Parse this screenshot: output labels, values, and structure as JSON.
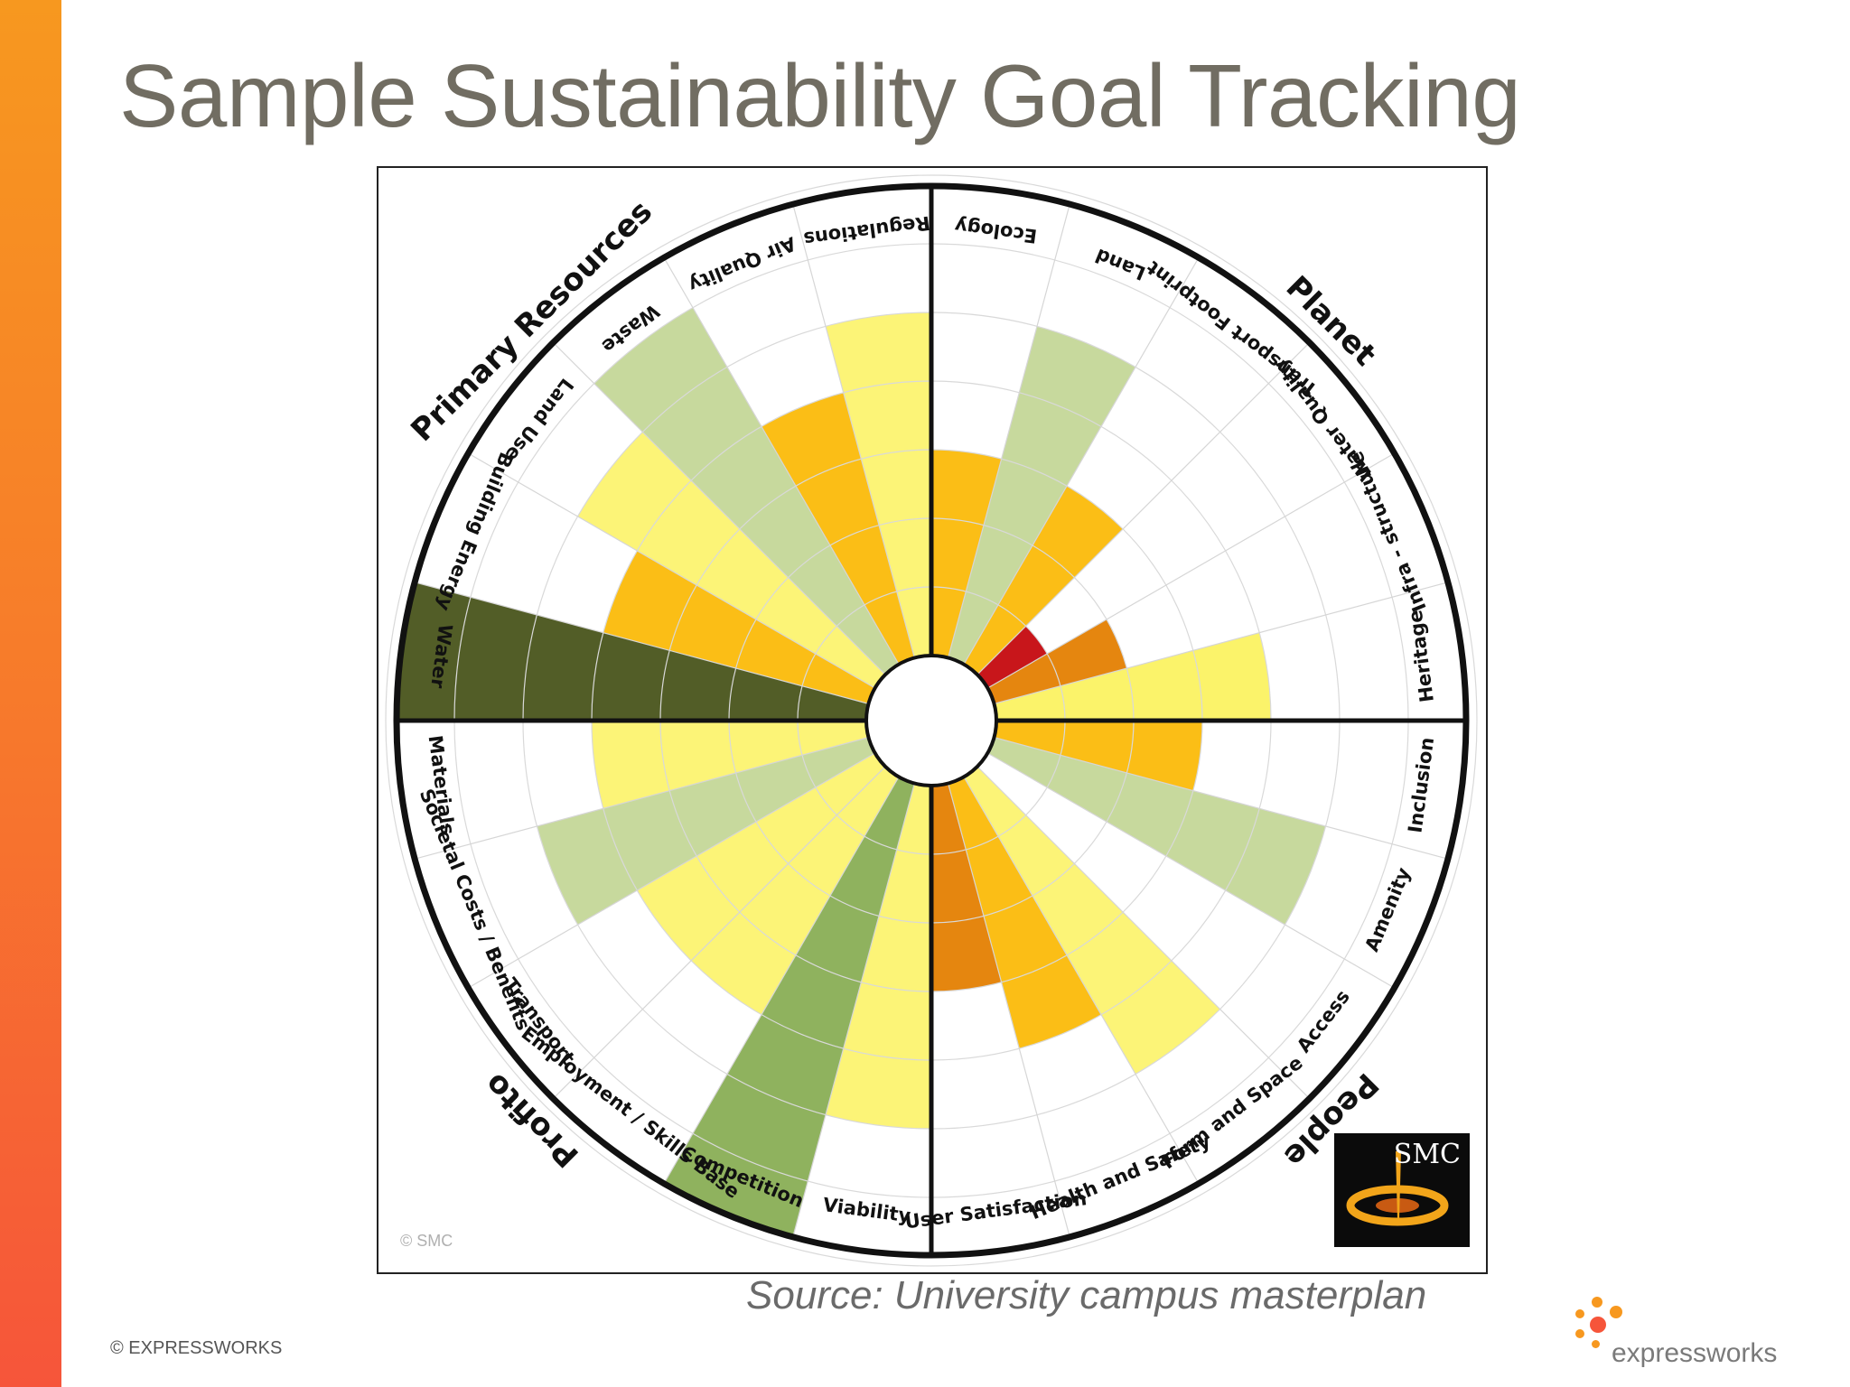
{
  "slide": {
    "title": "Sample Sustainability Goal Tracking",
    "source": "Source: University campus masterplan",
    "footer_copyright": "© EXPRESSWORKS",
    "brand_name": "expressworks",
    "chart_copyright": "© SMC",
    "chart_logo_text": "SMC"
  },
  "colors": {
    "accent_orange": "#f77a2b",
    "title_gray": "#716d62",
    "ring_stroke": "#111111"
  },
  "chart_data": {
    "type": "polar-area",
    "max_level": 7,
    "quadrants": [
      {
        "name": "Primary Resources"
      },
      {
        "name": "Planet"
      },
      {
        "name": "People"
      },
      {
        "name": "Profito"
      }
    ],
    "segments": [
      {
        "label": "Heritage",
        "value": 4,
        "color": "#fbf36a"
      },
      {
        "label": "Infra - structure",
        "value": 2,
        "color": "#e5860f"
      },
      {
        "label": "Water Quality",
        "value": 1,
        "color": "#c8161b"
      },
      {
        "label": "Transport Footprint",
        "value": 3,
        "color": "#fbbe16"
      },
      {
        "label": "Land",
        "value": 5,
        "color": "#c7d99d"
      },
      {
        "label": "Ecology",
        "value": 3,
        "color": "#fbbe16"
      },
      {
        "label": "Regulations",
        "value": 5,
        "color": "#fcf477"
      },
      {
        "label": "Air Quality",
        "value": 4,
        "color": "#fbbe16"
      },
      {
        "label": "Waste",
        "value": 6,
        "color": "#c7d99d"
      },
      {
        "label": "Land Use",
        "value": 5,
        "color": "#fcf477"
      },
      {
        "label": "Building Energy",
        "value": 4,
        "color": "#fbbe16"
      },
      {
        "label": "Water",
        "value": 8,
        "color": "#525d27"
      },
      {
        "label": "Materials",
        "value": 4,
        "color": "#fcf477"
      },
      {
        "label": "Societal Costs / Benefits",
        "value": 5,
        "color": "#c7d99d"
      },
      {
        "label": "Transport",
        "value": 4,
        "color": "#fcf477"
      },
      {
        "label": "Employment / Skills Base",
        "value": 4,
        "color": "#fcf477"
      },
      {
        "label": "Competition",
        "value": 7,
        "color": "#8fb25e"
      },
      {
        "label": "Viability",
        "value": 5,
        "color": "#fcf477"
      },
      {
        "label": "User Satisfaction",
        "value": 3,
        "color": "#e5860f"
      },
      {
        "label": "Health and Safety",
        "value": 4,
        "color": "#fbbe16"
      },
      {
        "label": "Form and Space",
        "value": 5,
        "color": "#fcf477"
      },
      {
        "label": "Access",
        "value": 0,
        "color": "#fcf477"
      },
      {
        "label": "Amenity",
        "value": 5,
        "color": "#c7d99d"
      },
      {
        "label": "Inclusion",
        "value": 3,
        "color": "#fbbe16"
      }
    ]
  }
}
